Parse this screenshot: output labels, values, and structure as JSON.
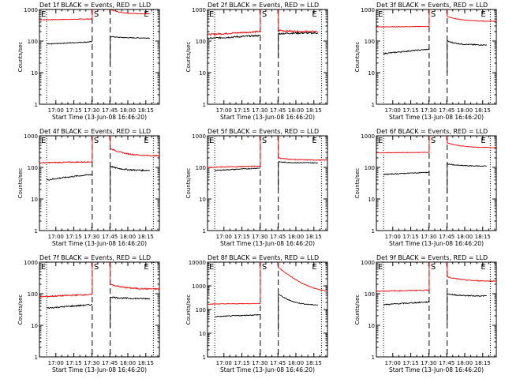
{
  "common": {
    "ylabel": "Counts/sec",
    "xlabel": "Start Time (13-Jun-08 16:46:20)",
    "x_tick_labels": [
      "17:00",
      "17:15",
      "17:30",
      "17:45",
      "18:00",
      "18:15"
    ],
    "y_tick_labels": [
      "1",
      "10",
      "100",
      "1000"
    ],
    "y_tick_labels_wide": [
      "1",
      "10",
      "100",
      "1000",
      "10000"
    ],
    "series_colors": {
      "events": "#000000",
      "lld": "#ff0000"
    },
    "marker_labels": {
      "exit": "E",
      "start": "S"
    }
  },
  "chart_data": [
    {
      "type": "line",
      "title": "Det 1f BLACK = Events, RED = LLD",
      "x_unit": "minutes after 16:46:20",
      "xlim": [
        0,
        100
      ],
      "ylim": [
        1,
        1000
      ],
      "ylog": true,
      "x_ticks_min": [
        13.67,
        28.67,
        43.67,
        58.67,
        73.67,
        88.67
      ],
      "dashed_vlines_min": [
        44,
        59
      ],
      "dotted_vlines_min": [
        6,
        95
      ],
      "events": {
        "start": 6,
        "end": 44,
        "y0": 80,
        "y1": 95,
        "noise": 0.03,
        "resume": 59,
        "post0": 140,
        "post1": 125,
        "end2": 92
      },
      "lld": {
        "start": 0,
        "end": 44,
        "y0": 470,
        "y1": 500,
        "noise": 0.02,
        "resume": 59,
        "post0": 1000,
        "post1": 720,
        "end2": 92,
        "spike": true
      }
    },
    {
      "type": "line",
      "title": "Det 2f BLACK = Events, RED = LLD",
      "x_unit": "minutes after 16:46:20",
      "xlim": [
        0,
        100
      ],
      "ylim": [
        1,
        1000
      ],
      "ylog": true,
      "x_ticks_min": [
        13.67,
        28.67,
        43.67,
        58.67,
        73.67,
        88.67
      ],
      "dashed_vlines_min": [
        44,
        59
      ],
      "dotted_vlines_min": [
        6,
        95
      ],
      "events": {
        "start": 0,
        "end": 44,
        "y0": 120,
        "y1": 150,
        "noise": 0.06,
        "resume": 59,
        "post0": 170,
        "post1": 180,
        "end2": 92
      },
      "lld": {
        "start": 0,
        "end": 44,
        "y0": 160,
        "y1": 200,
        "noise": 0.06,
        "resume": 59,
        "post0": 220,
        "post1": 200,
        "end2": 92,
        "spike": true
      }
    },
    {
      "type": "line",
      "title": "Det 3f BLACK = Events, RED = LLD",
      "x_unit": "minutes after 16:46:20",
      "xlim": [
        0,
        100
      ],
      "ylim": [
        1,
        1000
      ],
      "ylog": true,
      "x_ticks_min": [
        13.67,
        28.67,
        43.67,
        58.67,
        73.67,
        88.67
      ],
      "dashed_vlines_min": [
        44,
        59
      ],
      "dotted_vlines_min": [
        6,
        95
      ],
      "events": {
        "start": 6,
        "end": 44,
        "y0": 40,
        "y1": 55,
        "noise": 0.04,
        "resume": 59,
        "post0": 100,
        "post1": 75,
        "end2": 92
      },
      "lld": {
        "start": 0,
        "end": 44,
        "y0": 280,
        "y1": 290,
        "noise": 0.02,
        "resume": 59,
        "post0": 600,
        "post1": 420,
        "end2": 100,
        "spike": true
      }
    },
    {
      "type": "line",
      "title": "Det 4f BLACK = Events, RED = LLD",
      "x_unit": "minutes after 16:46:20",
      "xlim": [
        0,
        100
      ],
      "ylim": [
        1,
        1000
      ],
      "ylog": true,
      "x_ticks_min": [
        13.67,
        28.67,
        43.67,
        58.67,
        73.67,
        88.67
      ],
      "dashed_vlines_min": [
        44,
        59
      ],
      "dotted_vlines_min": [
        6,
        95
      ],
      "events": {
        "start": 6,
        "end": 44,
        "y0": 40,
        "y1": 60,
        "noise": 0.05,
        "resume": 59,
        "post0": 110,
        "post1": 80,
        "end2": 92
      },
      "lld": {
        "start": 0,
        "end": 44,
        "y0": 140,
        "y1": 150,
        "noise": 0.04,
        "resume": 59,
        "post0": 400,
        "post1": 230,
        "end2": 100,
        "spike": true
      }
    },
    {
      "type": "line",
      "title": "Det 5f BLACK = Events, RED = LLD",
      "x_unit": "minutes after 16:46:20",
      "xlim": [
        0,
        100
      ],
      "ylim": [
        1,
        1000
      ],
      "ylog": true,
      "x_ticks_min": [
        13.67,
        28.67,
        43.67,
        58.67,
        73.67,
        88.67
      ],
      "dashed_vlines_min": [
        44,
        59
      ],
      "dotted_vlines_min": [
        6,
        95
      ],
      "events": {
        "start": 6,
        "end": 44,
        "y0": 80,
        "y1": 95,
        "noise": 0.03,
        "resume": 59,
        "post0": 150,
        "post1": 140,
        "end2": 92
      },
      "lld": {
        "start": 0,
        "end": 44,
        "y0": 100,
        "y1": 110,
        "noise": 0.03,
        "resume": 59,
        "post0": 200,
        "post1": 170,
        "end2": 100,
        "spike": true
      }
    },
    {
      "type": "line",
      "title": "Det 6f BLACK = Events, RED = LLD",
      "x_unit": "minutes after 16:46:20",
      "xlim": [
        0,
        100
      ],
      "ylim": [
        1,
        1000
      ],
      "ylog": true,
      "x_ticks_min": [
        13.67,
        28.67,
        43.67,
        58.67,
        73.67,
        88.67
      ],
      "dashed_vlines_min": [
        44,
        59
      ],
      "dotted_vlines_min": [
        6,
        95
      ],
      "events": {
        "start": 6,
        "end": 44,
        "y0": 60,
        "y1": 70,
        "noise": 0.03,
        "resume": 59,
        "post0": 130,
        "post1": 110,
        "end2": 92
      },
      "lld": {
        "start": 0,
        "end": 44,
        "y0": 290,
        "y1": 300,
        "noise": 0.02,
        "resume": 59,
        "post0": 600,
        "post1": 420,
        "end2": 100,
        "spike": true
      }
    },
    {
      "type": "line",
      "title": "Det 7f BLACK = Events, RED = LLD",
      "x_unit": "minutes after 16:46:20",
      "xlim": [
        0,
        100
      ],
      "ylim": [
        1,
        1000
      ],
      "ylog": true,
      "x_ticks_min": [
        13.67,
        28.67,
        43.67,
        58.67,
        73.67,
        88.67
      ],
      "dashed_vlines_min": [
        44,
        59
      ],
      "dotted_vlines_min": [
        6,
        95
      ],
      "events": {
        "start": 6,
        "end": 44,
        "y0": 35,
        "y1": 45,
        "noise": 0.05,
        "resume": 59,
        "post0": 80,
        "post1": 70,
        "end2": 92
      },
      "lld": {
        "start": 0,
        "end": 44,
        "y0": 80,
        "y1": 95,
        "noise": 0.05,
        "resume": 59,
        "post0": 200,
        "post1": 140,
        "end2": 100,
        "spike": true
      }
    },
    {
      "type": "line",
      "title": "Det 8f BLACK = Events, RED = LLD",
      "x_unit": "minutes after 16:46:20",
      "xlim": [
        0,
        100
      ],
      "ylim": [
        1,
        10000
      ],
      "ylog": true,
      "x_ticks_min": [
        13.67,
        28.67,
        43.67,
        58.67,
        73.67,
        88.67
      ],
      "dashed_vlines_min": [
        44,
        59
      ],
      "dotted_vlines_min": [
        6,
        95
      ],
      "events": {
        "start": 6,
        "end": 44,
        "y0": 50,
        "y1": 60,
        "noise": 0.04,
        "resume": 59,
        "post0": 450,
        "post1": 150,
        "end2": 92
      },
      "lld": {
        "start": 0,
        "end": 44,
        "y0": 170,
        "y1": 180,
        "noise": 0.03,
        "resume": 59,
        "post0": 6000,
        "post1": 500,
        "end2": 100,
        "spike": true
      }
    },
    {
      "type": "line",
      "title": "Det 9f BLACK = Events, RED = LLD",
      "x_unit": "minutes after 16:46:20",
      "xlim": [
        0,
        100
      ],
      "ylim": [
        1,
        1000
      ],
      "ylog": true,
      "x_ticks_min": [
        13.67,
        28.67,
        43.67,
        58.67,
        73.67,
        88.67
      ],
      "dashed_vlines_min": [
        44,
        59
      ],
      "dotted_vlines_min": [
        6,
        95
      ],
      "events": {
        "start": 6,
        "end": 44,
        "y0": 45,
        "y1": 55,
        "noise": 0.04,
        "resume": 59,
        "post0": 100,
        "post1": 85,
        "end2": 92
      },
      "lld": {
        "start": 0,
        "end": 44,
        "y0": 120,
        "y1": 130,
        "noise": 0.03,
        "resume": 59,
        "post0": 350,
        "post1": 250,
        "end2": 100,
        "spike": true
      }
    }
  ]
}
